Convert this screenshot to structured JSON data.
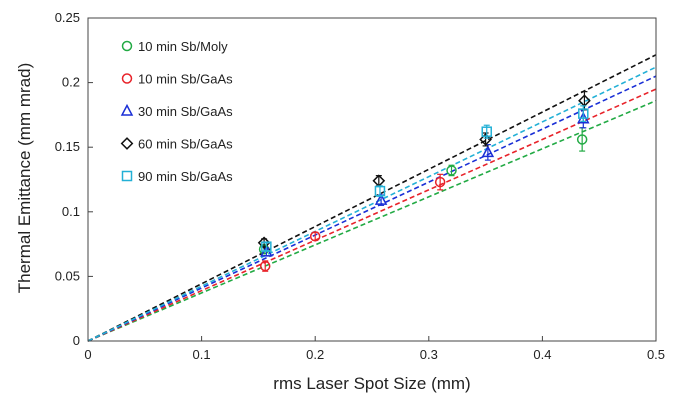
{
  "chart_data": {
    "type": "scatter",
    "title": "",
    "xlabel": "rms Laser Spot Size (mm)",
    "ylabel": "Thermal Emittance (mm mrad)",
    "xlim": [
      0,
      0.5
    ],
    "ylim": [
      0,
      0.25
    ],
    "x_ticks": [
      "0",
      "0.1",
      "0.2",
      "0.3",
      "0.4",
      "0.5"
    ],
    "y_ticks": [
      "0",
      "0.05",
      "0.1",
      "0.15",
      "0.2",
      "0.25"
    ],
    "grid": false,
    "legend_position": "top-left",
    "series": [
      {
        "name": "10 min Sb/Moly",
        "marker": "circle",
        "color": "#22aa44",
        "points": [
          {
            "x": 0.155,
            "y": 0.071,
            "err": 0.003
          },
          {
            "x": 0.32,
            "y": 0.132,
            "err": 0.004
          },
          {
            "x": 0.435,
            "y": 0.156,
            "err": 0.009
          }
        ],
        "fit_slope": 0.372
      },
      {
        "name": "10 min Sb/GaAs",
        "marker": "circle",
        "color": "#e8232a",
        "points": [
          {
            "x": 0.156,
            "y": 0.058,
            "err": 0.004
          },
          {
            "x": 0.2,
            "y": 0.081,
            "err": 0.003
          },
          {
            "x": 0.31,
            "y": 0.123,
            "err": 0.006
          }
        ],
        "fit_slope": 0.39
      },
      {
        "name": "30 min Sb/GaAs",
        "marker": "triangle",
        "color": "#1a2fd6",
        "points": [
          {
            "x": 0.157,
            "y": 0.069,
            "err": 0.003
          },
          {
            "x": 0.258,
            "y": 0.109,
            "err": 0.004
          },
          {
            "x": 0.352,
            "y": 0.146,
            "err": 0.006
          },
          {
            "x": 0.436,
            "y": 0.172,
            "err": 0.007
          }
        ],
        "fit_slope": 0.41
      },
      {
        "name": "60 min Sb/GaAs",
        "marker": "diamond",
        "color": "#111111",
        "points": [
          {
            "x": 0.155,
            "y": 0.076,
            "err": 0.003
          },
          {
            "x": 0.256,
            "y": 0.124,
            "err": 0.004
          },
          {
            "x": 0.35,
            "y": 0.156,
            "err": 0.005
          },
          {
            "x": 0.437,
            "y": 0.186,
            "err": 0.007
          }
        ],
        "fit_slope": 0.443
      },
      {
        "name": "90 min Sb/GaAs",
        "marker": "square",
        "color": "#22b0d6",
        "points": [
          {
            "x": 0.157,
            "y": 0.073,
            "err": 0.003
          },
          {
            "x": 0.257,
            "y": 0.116,
            "err": 0.004
          },
          {
            "x": 0.351,
            "y": 0.162,
            "err": 0.005
          },
          {
            "x": 0.436,
            "y": 0.176,
            "err": 0.006
          }
        ],
        "fit_slope": 0.424
      }
    ]
  }
}
